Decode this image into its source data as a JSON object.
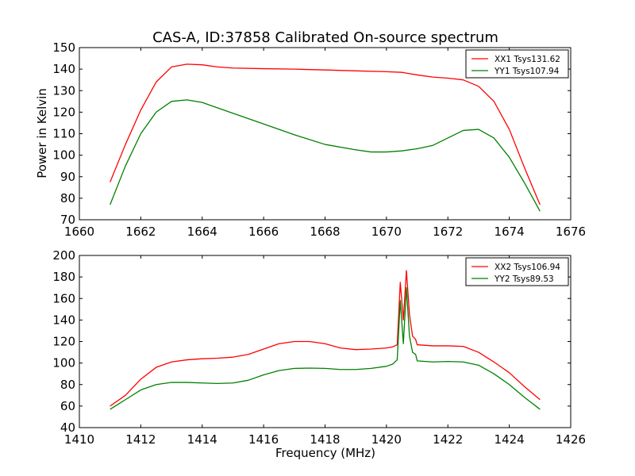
{
  "chart_data": [
    {
      "type": "line",
      "title": "CAS-A, ID:37858 Calibrated On-source spectrum",
      "xlabel": "",
      "ylabel": "Power in Kelvin",
      "xlim": [
        1660,
        1676
      ],
      "ylim": [
        70,
        150
      ],
      "xticks": [
        1660,
        1662,
        1664,
        1666,
        1668,
        1670,
        1672,
        1674,
        1676
      ],
      "yticks": [
        70,
        80,
        90,
        100,
        110,
        120,
        130,
        140,
        150
      ],
      "legend_position": "top-right",
      "grid": false,
      "series": [
        {
          "name": "XX1 Tsys131.62",
          "color": "#ff0000",
          "x": [
            1661.0,
            1661.5,
            1662.0,
            1662.5,
            1663.0,
            1663.5,
            1664.0,
            1664.5,
            1665.0,
            1666.0,
            1667.0,
            1668.0,
            1669.0,
            1670.0,
            1670.5,
            1671.0,
            1671.5,
            1672.0,
            1672.5,
            1673.0,
            1673.5,
            1674.0,
            1674.5,
            1675.0
          ],
          "y": [
            87.5,
            105,
            121,
            134,
            141,
            142.3,
            142,
            141,
            140.5,
            140.2,
            140,
            139.6,
            139.2,
            138.8,
            138.5,
            137.3,
            136.3,
            135.8,
            135,
            132,
            125,
            112,
            94,
            77
          ]
        },
        {
          "name": "YY1 Tsys107.94",
          "color": "#008000",
          "x": [
            1661.0,
            1661.5,
            1662.0,
            1662.5,
            1663.0,
            1663.5,
            1664.0,
            1664.5,
            1665.0,
            1666.0,
            1667.0,
            1668.0,
            1669.0,
            1669.5,
            1670.0,
            1670.5,
            1671.0,
            1671.5,
            1672.0,
            1672.5,
            1673.0,
            1673.5,
            1674.0,
            1674.5,
            1675.0
          ],
          "y": [
            77,
            95,
            110,
            120,
            125,
            125.7,
            124.5,
            122,
            119.5,
            114.5,
            109.5,
            105,
            102.5,
            101.5,
            101.5,
            102,
            103,
            104.5,
            108,
            111.5,
            112,
            108,
            99,
            87,
            74
          ]
        }
      ]
    },
    {
      "type": "line",
      "title": "",
      "xlabel": "Frequency (MHz)",
      "ylabel": "",
      "xlim": [
        1410,
        1426
      ],
      "ylim": [
        40,
        200
      ],
      "xticks": [
        1410,
        1412,
        1414,
        1416,
        1418,
        1420,
        1422,
        1424,
        1426
      ],
      "yticks": [
        40,
        60,
        80,
        100,
        120,
        140,
        160,
        180,
        200
      ],
      "legend_position": "top-right",
      "grid": false,
      "series": [
        {
          "name": "XX2 Tsys106.94",
          "color": "#ff0000",
          "x": [
            1411.0,
            1411.5,
            1412.0,
            1412.5,
            1413.0,
            1413.5,
            1414.0,
            1414.5,
            1415.0,
            1415.5,
            1416.0,
            1416.5,
            1417.0,
            1417.5,
            1418.0,
            1418.5,
            1419.0,
            1419.5,
            1420.0,
            1420.2,
            1420.35,
            1420.45,
            1420.55,
            1420.65,
            1420.75,
            1420.85,
            1420.95,
            1421.0,
            1421.5,
            1422.0,
            1422.5,
            1423.0,
            1423.5,
            1424.0,
            1424.5,
            1425.0
          ],
          "y": [
            60,
            70,
            85,
            96,
            101,
            103,
            104,
            104.5,
            105.5,
            108,
            113,
            118,
            120,
            120,
            118,
            114,
            112.5,
            113,
            114,
            115,
            117,
            175,
            140,
            186,
            145,
            125,
            122,
            117,
            116,
            116,
            115.5,
            110,
            101,
            91,
            78,
            66
          ]
        },
        {
          "name": "YY2 Tsys89.53",
          "color": "#008000",
          "x": [
            1411.0,
            1411.5,
            1412.0,
            1412.5,
            1413.0,
            1413.5,
            1414.0,
            1414.5,
            1415.0,
            1415.5,
            1416.0,
            1416.5,
            1417.0,
            1417.5,
            1418.0,
            1418.5,
            1419.0,
            1419.5,
            1420.0,
            1420.2,
            1420.35,
            1420.45,
            1420.55,
            1420.65,
            1420.75,
            1420.85,
            1420.95,
            1421.0,
            1421.5,
            1422.0,
            1422.5,
            1423.0,
            1423.5,
            1424.0,
            1424.5,
            1425.0
          ],
          "y": [
            57,
            66,
            75,
            80,
            82,
            82,
            81.5,
            81,
            81.5,
            84,
            89,
            93,
            95,
            95.3,
            95,
            94,
            94,
            95,
            97,
            99,
            103,
            158,
            118,
            170,
            125,
            110,
            108,
            102,
            101,
            101.5,
            101,
            98,
            90,
            80,
            68,
            57
          ]
        }
      ]
    }
  ]
}
